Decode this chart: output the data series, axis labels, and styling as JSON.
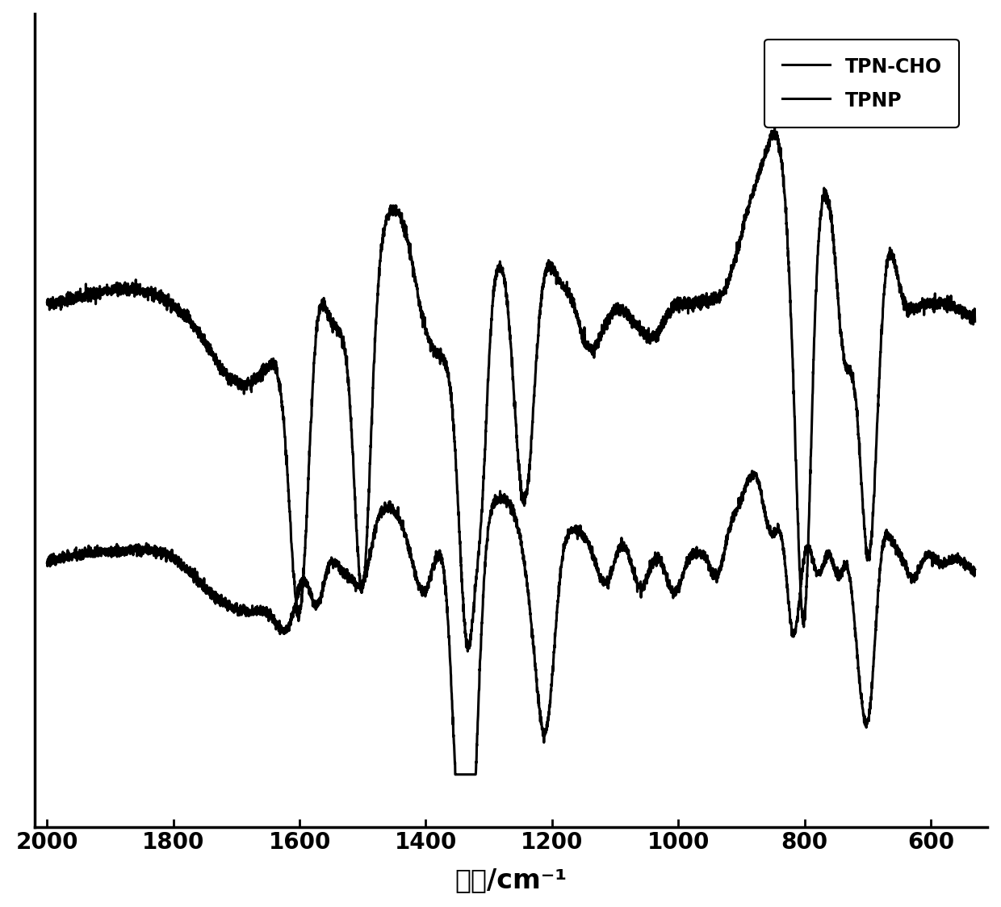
{
  "xlabel": "波长/cm⁻¹",
  "xticks": [
    2000,
    1800,
    1600,
    1400,
    1200,
    1000,
    800,
    600
  ],
  "legend_labels": [
    "TPN-CHO",
    "TPNP"
  ],
  "line_color": "#000000",
  "background_color": "#ffffff",
  "linewidth": 2.2
}
